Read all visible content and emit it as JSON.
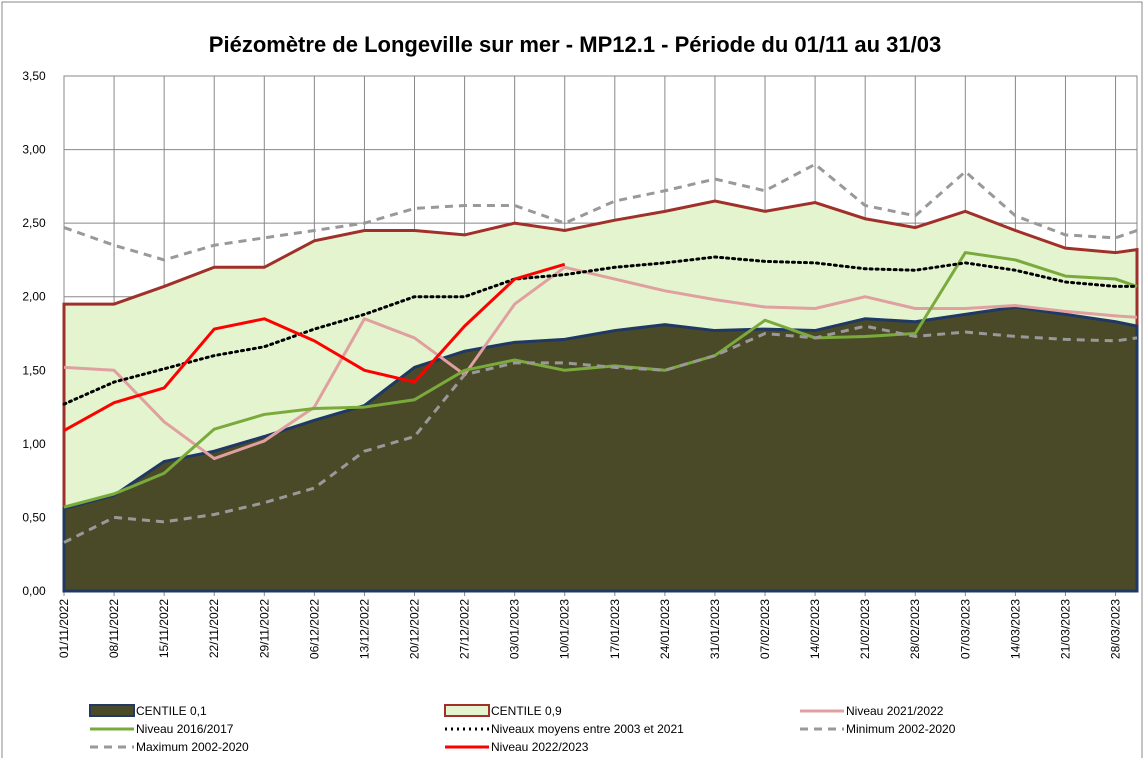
{
  "chart_data": {
    "type": "line",
    "title": "Piézomètre de Longeville sur mer - MP12.1 - Période du 01/11 au 31/03",
    "x": [
      "01/11/2022",
      "08/11/2022",
      "15/11/2022",
      "22/11/2022",
      "29/11/2022",
      "06/12/2022",
      "13/12/2022",
      "20/12/2022",
      "27/12/2022",
      "03/01/2023",
      "10/01/2023",
      "17/01/2023",
      "24/01/2023",
      "31/01/2023",
      "07/02/2023",
      "14/02/2023",
      "21/02/2023",
      "28/02/2023",
      "07/03/2023",
      "14/03/2023",
      "21/03/2023",
      "28/03/2023",
      "31/03/2023"
    ],
    "xlim": [
      "01/11/2022",
      "31/03/2023"
    ],
    "xticks": [
      "01/11/2022",
      "08/11/2022",
      "15/11/2022",
      "22/11/2022",
      "29/11/2022",
      "06/12/2022",
      "13/12/2022",
      "20/12/2022",
      "27/12/2022",
      "03/01/2023",
      "10/01/2023",
      "17/01/2023",
      "24/01/2023",
      "31/01/2023",
      "07/02/2023",
      "14/02/2023",
      "21/02/2023",
      "28/02/2023",
      "07/03/2023",
      "14/03/2023",
      "21/03/2023",
      "28/03/2023"
    ],
    "ylim": [
      0,
      3.5
    ],
    "yticks": [
      {
        "value": 0,
        "label": "0,00"
      },
      {
        "value": 0.5,
        "label": "0,50"
      },
      {
        "value": 1,
        "label": "1,00"
      },
      {
        "value": 1.5,
        "label": "1,50"
      },
      {
        "value": 2,
        "label": "2,00"
      },
      {
        "value": 2.5,
        "label": "2,50"
      },
      {
        "value": 3,
        "label": "3,00"
      },
      {
        "value": 3.5,
        "label": "3,50"
      }
    ],
    "grid": true,
    "series": [
      {
        "name": "CENTILE 0,1",
        "style": "area",
        "color": "#1f3864",
        "fill": "#4a4a28",
        "values": [
          0.56,
          0.65,
          0.88,
          0.95,
          1.05,
          1.16,
          1.26,
          1.52,
          1.63,
          1.69,
          1.71,
          1.77,
          1.81,
          1.77,
          1.78,
          1.77,
          1.85,
          1.83,
          1.88,
          1.93,
          1.88,
          1.83,
          1.8
        ]
      },
      {
        "name": "CENTILE 0,9",
        "style": "area",
        "color": "#a0302a",
        "fill": "#e4f4cf",
        "values": [
          1.95,
          1.95,
          2.07,
          2.2,
          2.2,
          2.38,
          2.45,
          2.45,
          2.42,
          2.5,
          2.45,
          2.52,
          2.58,
          2.65,
          2.58,
          2.64,
          2.53,
          2.47,
          2.58,
          2.45,
          2.33,
          2.3,
          2.32
        ]
      },
      {
        "name": "Niveau 2021/2022",
        "style": "solid",
        "color": "#e0a0a0",
        "values": [
          1.52,
          1.5,
          1.15,
          0.9,
          1.02,
          1.25,
          1.85,
          1.72,
          1.47,
          1.95,
          2.2,
          2.12,
          2.04,
          1.98,
          1.93,
          1.92,
          2.0,
          1.92,
          1.92,
          1.94,
          1.9,
          1.87,
          1.86
        ]
      },
      {
        "name": "Niveau 2016/2017",
        "style": "solid",
        "color": "#7aaa3c",
        "values": [
          0.57,
          0.66,
          0.8,
          1.1,
          1.2,
          1.24,
          1.25,
          1.3,
          1.5,
          1.57,
          1.5,
          1.53,
          1.5,
          1.6,
          1.84,
          1.72,
          1.73,
          1.75,
          2.3,
          2.25,
          2.14,
          2.12,
          2.07
        ]
      },
      {
        "name": "Niveaux moyens entre 2003 et 2021",
        "style": "dotted",
        "color": "#000000",
        "values": [
          1.27,
          1.42,
          1.51,
          1.6,
          1.66,
          1.78,
          1.88,
          2.0,
          2.0,
          2.12,
          2.15,
          2.2,
          2.23,
          2.27,
          2.24,
          2.23,
          2.19,
          2.18,
          2.23,
          2.18,
          2.1,
          2.07,
          2.07
        ]
      },
      {
        "name": "Minimum 2002-2020",
        "style": "dashed",
        "color": "#999999",
        "values": [
          0.33,
          0.5,
          0.47,
          0.52,
          0.6,
          0.7,
          0.95,
          1.05,
          1.47,
          1.55,
          1.55,
          1.52,
          1.5,
          1.6,
          1.75,
          1.72,
          1.8,
          1.73,
          1.76,
          1.73,
          1.71,
          1.7,
          1.72
        ]
      },
      {
        "name": "Maximum 2002-2020",
        "style": "dashed",
        "color": "#999999",
        "values": [
          2.47,
          2.35,
          2.25,
          2.35,
          2.4,
          2.45,
          2.5,
          2.6,
          2.62,
          2.62,
          2.5,
          2.65,
          2.72,
          2.8,
          2.72,
          2.9,
          2.62,
          2.55,
          2.85,
          2.55,
          2.42,
          2.4,
          2.45
        ]
      },
      {
        "name": "Niveau 2022/2023",
        "style": "solid",
        "color": "#ff0000",
        "values": [
          1.09,
          1.28,
          1.38,
          1.78,
          1.85,
          1.7,
          1.5,
          1.42,
          1.8,
          2.12,
          2.22,
          null,
          null,
          null,
          null,
          null,
          null,
          null,
          null,
          null,
          null,
          null,
          null
        ]
      }
    ]
  }
}
